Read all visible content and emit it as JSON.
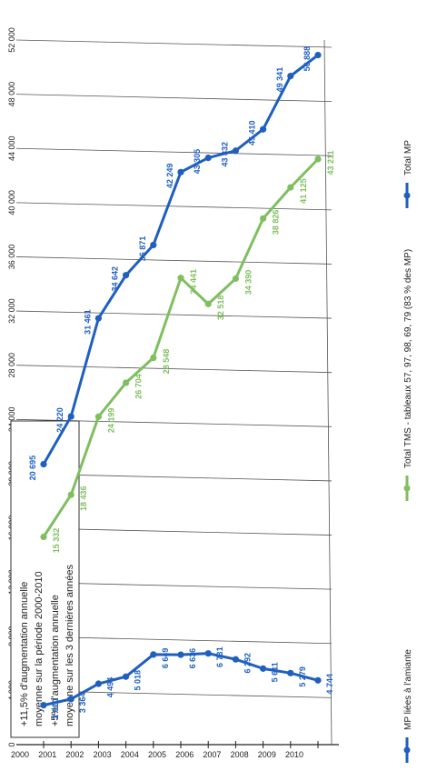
{
  "chart_data": {
    "type": "line",
    "orientation": "rotated-90-clockwise",
    "x": [
      "2000",
      "2001",
      "2002",
      "2003",
      "2004",
      "2005",
      "2006",
      "2007",
      "2008",
      "2009",
      "2010"
    ],
    "ylim": [
      0,
      52000
    ],
    "y_ticks": [
      0,
      4000,
      8000,
      12000,
      16000,
      20000,
      24000,
      28000,
      32000,
      36000,
      40000,
      44000,
      48000,
      52000
    ],
    "y_tick_labels": [
      "0",
      "4 000",
      "8 000",
      "12 000",
      "16 000",
      "20 000",
      "24 000",
      "28 000",
      "32 000",
      "36 000",
      "40 000",
      "44 000",
      "48 000",
      "52 000"
    ],
    "grid": true,
    "legend_position": "bottom",
    "series": [
      {
        "name": "MP liées à l'amiante",
        "color": "#1f5fbf",
        "values": [
          2910,
          3364,
          4494,
          5018,
          6649,
          6636,
          6731,
          6292,
          5611,
          5279,
          4744
        ],
        "labels": [
          "2 910",
          "3 364",
          "4 494",
          "5 018",
          "6 649",
          "6 636",
          "6 731",
          "6 292",
          "5 611",
          "5 279",
          "4 744"
        ]
      },
      {
        "name": "Total TMS - tableaux 57, 97, 98, 69, 79 (83 % des MP)",
        "color": "#7fbf5f",
        "values": [
          15332,
          18436,
          24199,
          26704,
          28548,
          34441,
          32518,
          34390,
          38826,
          41125,
          43211
        ],
        "labels": [
          "15 332",
          "18 436",
          "24 199",
          "26 704",
          "28 548",
          "34 441",
          "32 518",
          "34 390",
          "38 826",
          "41 125",
          "43 211"
        ]
      },
      {
        "name": "Total MP",
        "color": "#1f5fbf",
        "values": [
          20695,
          24220,
          31461,
          34642,
          36871,
          42249,
          43305,
          43832,
          45410,
          49341,
          50888
        ],
        "labels": [
          "20 695",
          "24 220",
          "31 461",
          "34 642",
          "36 871",
          "42 249",
          "43 305",
          "43 832",
          "45 410",
          "49 341",
          "50 888"
        ]
      }
    ],
    "annotations": [
      "+11,5% d'augmentation annuelle",
      "moyenne sur la période 2000-2010",
      "+5% d'augmentation annuelle",
      "moyenne sur les 3 dernières années"
    ]
  }
}
